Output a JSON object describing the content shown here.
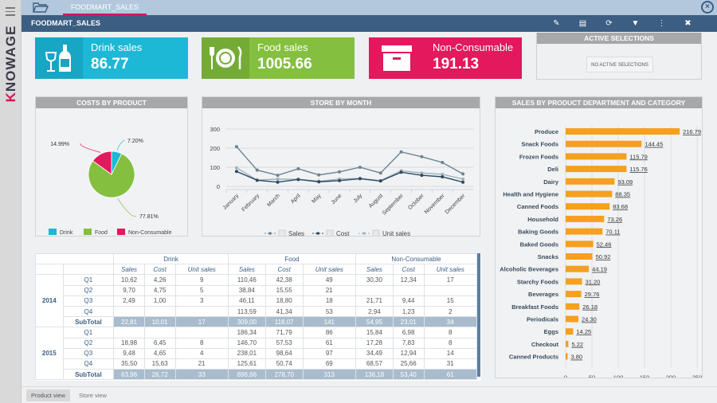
{
  "app": {
    "brand_prefix": "K",
    "brand_rest": "NOWAGE"
  },
  "tabbar": {
    "tab_label": "FOODMART_SALES"
  },
  "docbar": {
    "title": "FOODMART_SALES",
    "icons": [
      "edit-icon",
      "save-icon",
      "refresh-icon",
      "filter-icon",
      "more-icon",
      "close-icon"
    ]
  },
  "kpis": {
    "drink": {
      "label": "Drink sales",
      "value": "86.77",
      "color": "#1db8d6"
    },
    "food": {
      "label": "Food sales",
      "value": "1005.66",
      "color": "#84bf40"
    },
    "non": {
      "label": "Non-Consumable",
      "value": "191.13",
      "color": "#e3185d"
    }
  },
  "active_selections": {
    "title": "ACTIVE SELECTIONS",
    "empty_label": "NO ACTIVE SELECTIONS"
  },
  "chart_data": [
    {
      "type": "pie",
      "title": "COSTS BY PRODUCT",
      "categories": [
        "Drink",
        "Food",
        "Non-Consumable"
      ],
      "values": [
        7.2,
        77.81,
        14.99
      ],
      "labels": [
        "7.20%",
        "77.81%",
        "14.99%"
      ],
      "colors": [
        "#1db8d6",
        "#84bf40",
        "#e3185d"
      ],
      "legend": "bottom"
    },
    {
      "type": "line",
      "title": "STORE BY MONTH",
      "categories": [
        "January",
        "February",
        "March",
        "April",
        "May",
        "June",
        "July",
        "August",
        "September",
        "October",
        "November",
        "December"
      ],
      "series": [
        {
          "name": "Sales",
          "values": [
            208,
            85,
            58,
            92,
            60,
            76,
            100,
            70,
            180,
            155,
            125,
            65
          ],
          "color": "#6d8391"
        },
        {
          "name": "Cost",
          "values": [
            78,
            32,
            22,
            36,
            24,
            30,
            40,
            28,
            74,
            58,
            50,
            22
          ],
          "color": "#2f4a5f"
        },
        {
          "name": "Unit sales",
          "values": [
            97,
            33,
            38,
            37,
            27,
            38,
            42,
            30,
            82,
            70,
            63,
            38
          ],
          "color": "#9fb3c0"
        }
      ],
      "yticks": [
        0,
        100,
        200,
        300
      ],
      "ylim": [
        0,
        300
      ],
      "grid": true,
      "legend": "bottom"
    },
    {
      "type": "bar",
      "title": "SALES BY PRODUCT DEPARTMENT AND CATEGORY",
      "orientation": "horizontal",
      "categories": [
        "Produce",
        "Snack Foods",
        "Frozen Foods",
        "Deli",
        "Dairy",
        "Health and Hygiene",
        "Canned Foods",
        "Household",
        "Baking Goods",
        "Baked Goods",
        "Snacks",
        "Alcoholic Beverages",
        "Starchy Foods",
        "Beverages",
        "Breakfast Foods",
        "Periodicals",
        "Eggs",
        "Checkout",
        "Canned Products"
      ],
      "values": [
        216.79,
        144.45,
        115.79,
        115.76,
        93.09,
        88.35,
        83.68,
        73.26,
        70.11,
        52.46,
        50.92,
        44.19,
        31.2,
        29.76,
        26.18,
        24.3,
        14.25,
        5.22,
        3.8
      ],
      "labels": [
        "216.79",
        "144.45",
        "115.79",
        "115.76",
        "93.09",
        "88.35",
        "83.68",
        "73.26",
        "70.11",
        "52.46",
        "50.92",
        "44.19",
        "31.20",
        "29.76",
        "26.18",
        "24.30",
        "14.25",
        "5.22",
        "3.80"
      ],
      "xticks": [
        0,
        50,
        100,
        150,
        200,
        250
      ],
      "xlim": [
        0,
        250
      ],
      "color": "#f5a01e",
      "grid": true
    }
  ],
  "table": {
    "groups": [
      "Drink",
      "Food",
      "Non-Consumable"
    ],
    "measures": [
      "Sales",
      "Cost",
      "Unit sales"
    ],
    "years": [
      {
        "year": "2014",
        "rows": [
          {
            "q": "Q1",
            "cells": [
              "10,62",
              "4,26",
              "9",
              "110,46",
              "42,38",
              "49",
              "30,30",
              "12,34",
              "17"
            ]
          },
          {
            "q": "Q2",
            "cells": [
              "9,70",
              "4,75",
              "5",
              "38,84",
              "15,55",
              "21",
              "",
              "",
              ""
            ]
          },
          {
            "q": "Q3",
            "cells": [
              "2,49",
              "1,00",
              "3",
              "46,11",
              "18,80",
              "18",
              "21,71",
              "9,44",
              "15"
            ]
          },
          {
            "q": "Q4",
            "cells": [
              "",
              "",
              "",
              "113,59",
              "41,34",
              "53",
              "2,94",
              "1,23",
              "2"
            ]
          }
        ],
        "subtotal": {
          "label": "SubTotal",
          "cells": [
            "22,81",
            "10,01",
            "17",
            "309,00",
            "118,07",
            "141",
            "54,95",
            "23,01",
            "34"
          ]
        }
      },
      {
        "year": "2015",
        "rows": [
          {
            "q": "Q1",
            "cells": [
              "",
              "",
              "",
              "186,34",
              "71,79",
              "86",
              "15,84",
              "6,98",
              "8"
            ]
          },
          {
            "q": "Q2",
            "cells": [
              "18,98",
              "6,45",
              "8",
              "146,70",
              "57,53",
              "61",
              "17,28",
              "7,83",
              "8"
            ]
          },
          {
            "q": "Q3",
            "cells": [
              "9,48",
              "4,65",
              "4",
              "238,01",
              "98,64",
              "97",
              "34,49",
              "12,94",
              "14"
            ]
          },
          {
            "q": "Q4",
            "cells": [
              "35,50",
              "15,63",
              "21",
              "125,61",
              "50,74",
              "69",
              "68,57",
              "25,66",
              "31"
            ]
          }
        ],
        "subtotal": {
          "label": "SubTotal",
          "cells": [
            "63,96",
            "26,72",
            "33",
            "696,66",
            "278,70",
            "313",
            "136,18",
            "53,40",
            "61"
          ]
        }
      }
    ]
  },
  "sheets": {
    "active": "Product view",
    "other": "Store view"
  }
}
